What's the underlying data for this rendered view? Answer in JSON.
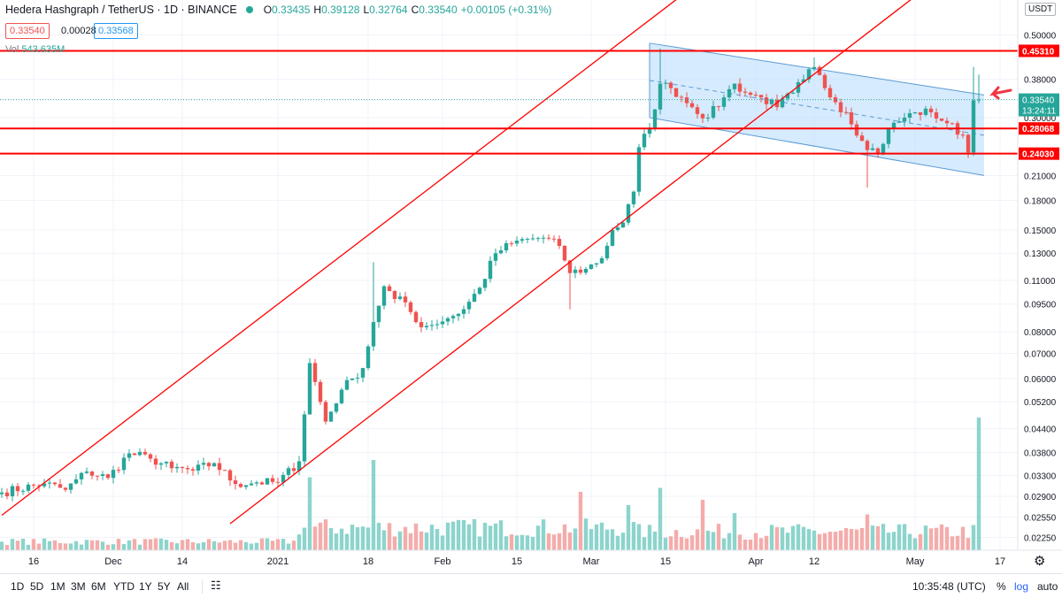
{
  "legend": {
    "symbol": "Hedera Hashgraph / TetherUS · 1D · BINANCE",
    "o_label": "O",
    "o": "0.33435",
    "h_label": "H",
    "h": "0.39128",
    "l_label": "L",
    "l": "0.32764",
    "c_label": "C",
    "c": "0.33540",
    "change": "+0.00105 (+0.31%)"
  },
  "price_boxes": {
    "sell": "0.33540",
    "spread": "0.00028",
    "buy": "0.33568"
  },
  "volume": {
    "label": "Vol",
    "value": "543.635M"
  },
  "currency_badge": "USDT",
  "bottom_bar": {
    "ranges": [
      "1D",
      "5D",
      "1M",
      "3M",
      "6M",
      "YTD",
      "1Y",
      "5Y",
      "All"
    ],
    "clock": "10:35:48 (UTC)",
    "percent": "%",
    "log": "log",
    "auto": "auto"
  },
  "colors": {
    "up": "#26a69a",
    "down": "#ef5350",
    "trendline": "#ff0000",
    "channel_fill": "#bbdefb",
    "channel_stroke": "#5b9bd5"
  },
  "chart_data": {
    "type": "candlestick",
    "title": "Hedera Hashgraph / TetherUS · 1D · BINANCE",
    "scale": "log",
    "ylim": [
      0.0208,
      0.62
    ],
    "y_ticks": [
      0.5,
      0.38,
      0.3,
      0.21,
      0.18,
      0.15,
      0.13,
      0.11,
      0.095,
      0.08,
      0.07,
      0.06,
      0.052,
      0.044,
      0.038,
      0.033,
      0.029,
      0.0255,
      0.0225
    ],
    "y_tick_labels": [
      "0.50000",
      "0.38000",
      "0.30000",
      "0.21000",
      "0.18000",
      "0.15000",
      "0.13000",
      "0.11000",
      "0.09500",
      "0.08000",
      "0.07000",
      "0.06000",
      "0.05200",
      "0.04400",
      "0.03800",
      "0.03300",
      "0.02900",
      "0.02550",
      "0.02250"
    ],
    "x_ticks": [
      {
        "label": "16",
        "day": 6
      },
      {
        "label": "Dec",
        "day": 21
      },
      {
        "label": "14",
        "day": 34
      },
      {
        "label": "2021",
        "day": 52
      },
      {
        "label": "18",
        "day": 69
      },
      {
        "label": "Feb",
        "day": 83
      },
      {
        "label": "15",
        "day": 97
      },
      {
        "label": "Mar",
        "day": 111
      },
      {
        "label": "15",
        "day": 125
      },
      {
        "label": "Apr",
        "day": 142
      },
      {
        "label": "12",
        "day": 153
      },
      {
        "label": "May",
        "day": 172
      },
      {
        "label": "17",
        "day": 188
      }
    ],
    "last_day_index": 184,
    "horizontal_levels": [
      0.4531,
      0.28068,
      0.2403
    ],
    "last_price_label": "0.33540",
    "countdown": "13:24:11",
    "trend_lines": [
      {
        "p1": {
          "day": 0,
          "price": 0.0258
        },
        "p2": {
          "day": 146,
          "price": 1.0
        }
      },
      {
        "p1": {
          "day": 43,
          "price": 0.0245
        },
        "p2": {
          "day": 185,
          "price": 0.88
        }
      }
    ],
    "descending_channel": {
      "upper": {
        "p1": {
          "day": 122,
          "price": 0.475
        },
        "p2": {
          "day": 185,
          "price": 0.345
        }
      },
      "lower": {
        "p1": {
          "day": 122,
          "price": 0.3
        },
        "p2": {
          "day": 185,
          "price": 0.21
        }
      }
    },
    "close_anchors": [
      [
        0,
        0.0297
      ],
      [
        8,
        0.0314
      ],
      [
        12,
        0.0302
      ],
      [
        16,
        0.0338
      ],
      [
        20,
        0.0325
      ],
      [
        24,
        0.0378
      ],
      [
        28,
        0.0366
      ],
      [
        32,
        0.0345
      ],
      [
        36,
        0.034
      ],
      [
        40,
        0.0356
      ],
      [
        44,
        0.0313
      ],
      [
        48,
        0.0316
      ],
      [
        52,
        0.0316
      ],
      [
        56,
        0.036
      ],
      [
        58,
        0.066
      ],
      [
        61,
        0.046
      ],
      [
        64,
        0.056
      ],
      [
        66,
        0.06
      ],
      [
        68,
        0.064
      ],
      [
        70,
        0.085
      ],
      [
        72,
        0.106
      ],
      [
        74,
        0.098
      ],
      [
        76,
        0.096
      ],
      [
        78,
        0.085
      ],
      [
        80,
        0.083
      ],
      [
        84,
        0.087
      ],
      [
        87,
        0.092
      ],
      [
        90,
        0.105
      ],
      [
        93,
        0.13
      ],
      [
        96,
        0.138
      ],
      [
        99,
        0.142
      ],
      [
        102,
        0.143
      ],
      [
        105,
        0.136
      ],
      [
        107,
        0.115
      ],
      [
        110,
        0.118
      ],
      [
        113,
        0.126
      ],
      [
        115,
        0.15
      ],
      [
        117,
        0.157
      ],
      [
        119,
        0.19
      ],
      [
        120,
        0.25
      ],
      [
        122,
        0.282
      ],
      [
        124,
        0.37
      ],
      [
        126,
        0.36
      ],
      [
        128,
        0.34
      ],
      [
        130,
        0.32
      ],
      [
        133,
        0.3
      ],
      [
        136,
        0.34
      ],
      [
        138,
        0.37
      ],
      [
        140,
        0.35
      ],
      [
        143,
        0.34
      ],
      [
        146,
        0.32
      ],
      [
        149,
        0.35
      ],
      [
        151,
        0.38
      ],
      [
        153,
        0.41
      ],
      [
        155,
        0.36
      ],
      [
        157,
        0.33
      ],
      [
        159,
        0.31
      ],
      [
        162,
        0.26
      ],
      [
        165,
        0.24
      ],
      [
        167,
        0.28
      ],
      [
        170,
        0.3
      ],
      [
        172,
        0.31
      ],
      [
        175,
        0.31
      ],
      [
        178,
        0.29
      ],
      [
        181,
        0.27
      ],
      [
        182,
        0.242
      ],
      [
        183,
        0.334
      ],
      [
        184,
        0.3354
      ]
    ],
    "volume_note": "volume bars scaled relative to peak volume",
    "volume_spikes": [
      [
        58,
        0.55
      ],
      [
        70,
        0.68
      ],
      [
        124,
        0.47
      ],
      [
        132,
        0.38
      ],
      [
        109,
        0.44
      ],
      [
        184,
        1.0
      ],
      [
        118,
        0.34
      ],
      [
        163,
        0.27
      ],
      [
        138,
        0.28
      ]
    ]
  }
}
